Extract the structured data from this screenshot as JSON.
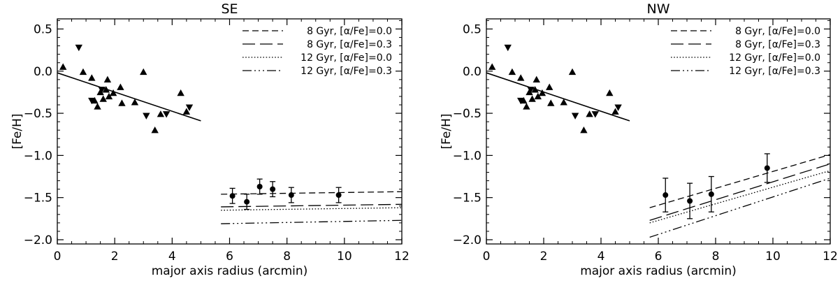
{
  "chart_data": [
    {
      "type": "scatter",
      "title": "SE",
      "xlabel": "major axis radius (arcmin)",
      "ylabel": "[Fe/H]",
      "xlim": [
        0,
        12
      ],
      "ylim": [
        -2.05,
        0.62
      ],
      "xticks": [
        0,
        2,
        4,
        6,
        8,
        10,
        12
      ],
      "xtick_labels": [
        "0",
        "2",
        "4",
        "6",
        "8",
        "10",
        "12"
      ],
      "yticks": [
        -2.0,
        -1.5,
        -1.0,
        -0.5,
        0.0,
        0.5
      ],
      "ytick_labels": [
        "−2.0",
        "−1.5",
        "−1.0",
        "−0.5",
        "0.0",
        "0.5"
      ],
      "grid": false,
      "legend_position": "top-right",
      "legend": [
        {
          "label": "8 Gyr, [α/Fe]=0.0",
          "dash": "dashed"
        },
        {
          "label": "8 Gyr, [α/Fe]=0.3",
          "dash": "longdash"
        },
        {
          "label": "12 Gyr, [α/Fe]=0.0",
          "dash": "dotted"
        },
        {
          "label": "12 Gyr, [α/Fe]=0.3",
          "dash": "dashdotdotdot"
        }
      ],
      "up_triangles": [
        {
          "x": 0.2,
          "y": 0.05
        },
        {
          "x": 0.9,
          "y": -0.01
        },
        {
          "x": 1.2,
          "y": -0.08
        },
        {
          "x": 1.3,
          "y": -0.35
        },
        {
          "x": 1.4,
          "y": -0.42
        },
        {
          "x": 1.5,
          "y": -0.25
        },
        {
          "x": 1.6,
          "y": -0.33
        },
        {
          "x": 1.7,
          "y": -0.22
        },
        {
          "x": 1.75,
          "y": -0.1
        },
        {
          "x": 1.8,
          "y": -0.3
        },
        {
          "x": 1.95,
          "y": -0.26
        },
        {
          "x": 2.2,
          "y": -0.19
        },
        {
          "x": 2.25,
          "y": -0.38
        },
        {
          "x": 2.7,
          "y": -0.37
        },
        {
          "x": 3.0,
          "y": -0.01
        },
        {
          "x": 3.4,
          "y": -0.7
        },
        {
          "x": 3.6,
          "y": -0.51
        },
        {
          "x": 4.3,
          "y": -0.26
        },
        {
          "x": 4.5,
          "y": -0.48
        }
      ],
      "down_triangles": [
        {
          "x": 0.75,
          "y": 0.28
        },
        {
          "x": 1.2,
          "y": -0.35
        },
        {
          "x": 1.55,
          "y": -0.22
        },
        {
          "x": 3.1,
          "y": -0.53
        },
        {
          "x": 3.8,
          "y": -0.51
        },
        {
          "x": 4.6,
          "y": -0.43
        }
      ],
      "fit_line": {
        "x": [
          0,
          5.0
        ],
        "y": [
          -0.02,
          -0.59
        ]
      },
      "error_points": [
        {
          "x": 6.1,
          "y": -1.48,
          "err": 0.09
        },
        {
          "x": 6.6,
          "y": -1.55,
          "err": 0.09
        },
        {
          "x": 7.05,
          "y": -1.37,
          "err": 0.09
        },
        {
          "x": 7.5,
          "y": -1.4,
          "err": 0.09
        },
        {
          "x": 8.15,
          "y": -1.47,
          "err": 0.09
        },
        {
          "x": 9.8,
          "y": -1.47,
          "err": 0.09
        }
      ],
      "models": [
        {
          "name": "8 Gyr, [α/Fe]=0.0",
          "dash": "dashed",
          "x": [
            5.7,
            12
          ],
          "y": [
            -1.46,
            -1.43
          ]
        },
        {
          "name": "8 Gyr, [α/Fe]=0.3",
          "dash": "longdash",
          "x": [
            5.7,
            12
          ],
          "y": [
            -1.61,
            -1.58
          ]
        },
        {
          "name": "12 Gyr, [α/Fe]=0.0",
          "dash": "dotted",
          "x": [
            5.7,
            12
          ],
          "y": [
            -1.65,
            -1.62
          ]
        },
        {
          "name": "12 Gyr, [α/Fe]=0.3",
          "dash": "dashdotdotdot",
          "x": [
            5.7,
            12
          ],
          "y": [
            -1.81,
            -1.77
          ]
        }
      ]
    },
    {
      "type": "scatter",
      "title": "NW",
      "xlabel": "major axis radius (arcmin)",
      "ylabel": "[Fe/H]",
      "xlim": [
        0,
        12
      ],
      "ylim": [
        -2.05,
        0.62
      ],
      "xticks": [
        0,
        2,
        4,
        6,
        8,
        10,
        12
      ],
      "xtick_labels": [
        "0",
        "2",
        "4",
        "6",
        "8",
        "10",
        "12"
      ],
      "yticks": [
        -2.0,
        -1.5,
        -1.0,
        -0.5,
        0.0,
        0.5
      ],
      "ytick_labels": [
        "−2.0",
        "−1.5",
        "−1.0",
        "−0.5",
        "0.0",
        "0.5"
      ],
      "grid": false,
      "legend_position": "top-right",
      "legend": [
        {
          "label": "8 Gyr, [α/Fe]=0.0",
          "dash": "dashed"
        },
        {
          "label": "8 Gyr, [α/Fe]=0.3",
          "dash": "longdash"
        },
        {
          "label": "12 Gyr, [α/Fe]=0.0",
          "dash": "dotted"
        },
        {
          "label": "12 Gyr, [α/Fe]=0.3",
          "dash": "dashdotdotdot"
        }
      ],
      "up_triangles": [
        {
          "x": 0.2,
          "y": 0.05
        },
        {
          "x": 0.9,
          "y": -0.01
        },
        {
          "x": 1.2,
          "y": -0.08
        },
        {
          "x": 1.3,
          "y": -0.35
        },
        {
          "x": 1.4,
          "y": -0.42
        },
        {
          "x": 1.5,
          "y": -0.25
        },
        {
          "x": 1.6,
          "y": -0.33
        },
        {
          "x": 1.7,
          "y": -0.22
        },
        {
          "x": 1.75,
          "y": -0.1
        },
        {
          "x": 1.8,
          "y": -0.3
        },
        {
          "x": 1.95,
          "y": -0.26
        },
        {
          "x": 2.2,
          "y": -0.19
        },
        {
          "x": 2.25,
          "y": -0.38
        },
        {
          "x": 2.7,
          "y": -0.37
        },
        {
          "x": 3.0,
          "y": -0.01
        },
        {
          "x": 3.4,
          "y": -0.7
        },
        {
          "x": 3.6,
          "y": -0.51
        },
        {
          "x": 4.3,
          "y": -0.26
        },
        {
          "x": 4.5,
          "y": -0.48
        }
      ],
      "down_triangles": [
        {
          "x": 0.75,
          "y": 0.28
        },
        {
          "x": 1.2,
          "y": -0.35
        },
        {
          "x": 1.55,
          "y": -0.22
        },
        {
          "x": 3.1,
          "y": -0.53
        },
        {
          "x": 3.8,
          "y": -0.51
        },
        {
          "x": 4.6,
          "y": -0.43
        }
      ],
      "fit_line": {
        "x": [
          0,
          5.0
        ],
        "y": [
          -0.02,
          -0.59
        ]
      },
      "error_points": [
        {
          "x": 6.25,
          "y": -1.47,
          "err": 0.2
        },
        {
          "x": 7.1,
          "y": -1.54,
          "err": 0.21
        },
        {
          "x": 7.85,
          "y": -1.46,
          "err": 0.21
        },
        {
          "x": 9.8,
          "y": -1.15,
          "err": 0.17
        }
      ],
      "models": [
        {
          "name": "8 Gyr, [α/Fe]=0.0",
          "dash": "dashed",
          "x": [
            5.7,
            12
          ],
          "y": [
            -1.62,
            -0.99
          ]
        },
        {
          "name": "8 Gyr, [α/Fe]=0.3",
          "dash": "longdash",
          "x": [
            5.7,
            12
          ],
          "y": [
            -1.77,
            -1.1
          ]
        },
        {
          "name": "12 Gyr, [α/Fe]=0.0",
          "dash": "dotted",
          "x": [
            5.7,
            12
          ],
          "y": [
            -1.8,
            -1.18
          ]
        },
        {
          "name": "12 Gyr, [α/Fe]=0.3",
          "dash": "dashdotdotdot",
          "x": [
            5.7,
            12
          ],
          "y": [
            -1.97,
            -1.27
          ]
        }
      ]
    }
  ]
}
